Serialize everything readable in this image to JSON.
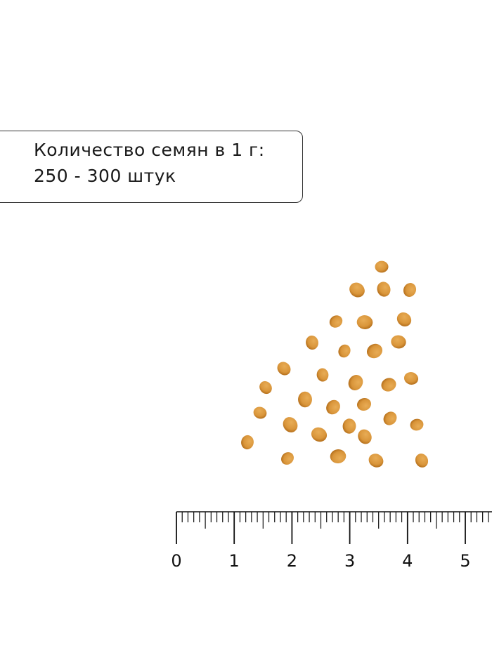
{
  "info": {
    "line1": "Количество семян в 1 г:",
    "line2": "250 - 300 штук"
  },
  "seeds": {
    "count_shown": 32,
    "color": "#d9953a"
  },
  "ruler": {
    "labels": [
      "0",
      "1",
      "2",
      "3",
      "4",
      "5"
    ],
    "unit": "cm",
    "color": "#111111"
  }
}
